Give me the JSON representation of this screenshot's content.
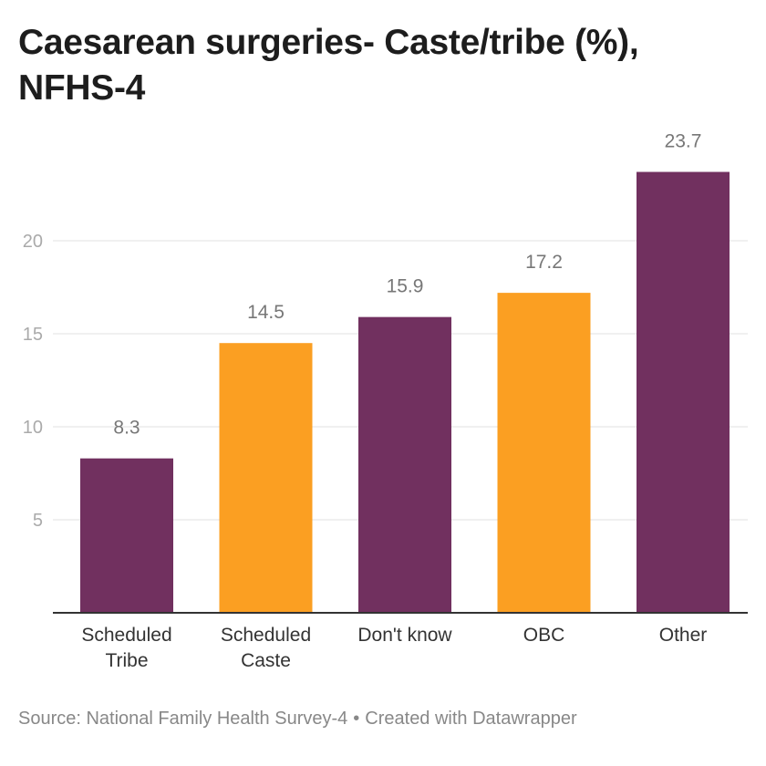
{
  "title": "Caesarean surgeries- Caste/tribe (%), NFHS-4",
  "footer": {
    "source": "Source: National Family Health Survey-4",
    "separator": "•",
    "credit": "Created with Datawrapper"
  },
  "colors": {
    "purple": "#71305f",
    "orange": "#fb9f22",
    "grid": "#e0e0e0",
    "axis": "#333333",
    "tick_text": "#aaaaaa",
    "value_text": "#777777",
    "category_text": "#333333"
  },
  "chart_data": {
    "type": "bar",
    "title": "Caesarean surgeries- Caste/tribe (%), NFHS-4",
    "xlabel": "",
    "ylabel": "",
    "categories": [
      [
        "Scheduled",
        "Tribe"
      ],
      [
        "Scheduled",
        "Caste"
      ],
      [
        "Don't know"
      ],
      [
        "OBC"
      ],
      [
        "Other"
      ]
    ],
    "values": [
      8.3,
      14.5,
      15.9,
      17.2,
      23.7
    ],
    "bar_colors": [
      "purple",
      "orange",
      "purple",
      "orange",
      "purple"
    ],
    "yticks": [
      5,
      10,
      15,
      20
    ],
    "ylim": [
      0,
      24
    ],
    "grid": true,
    "legend": "none"
  }
}
